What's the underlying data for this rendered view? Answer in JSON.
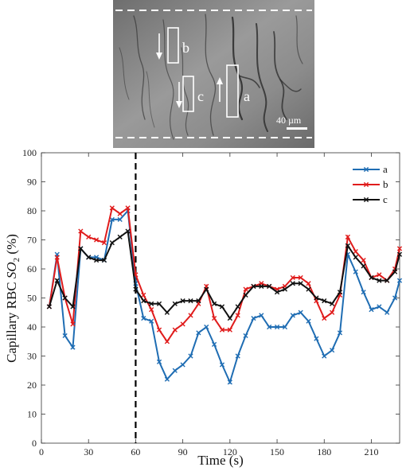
{
  "inset": {
    "labels": [
      "a",
      "b",
      "c"
    ],
    "scale_bar_label": "40 µm"
  },
  "chart_data": {
    "type": "line",
    "title": "",
    "xlabel": "Time (s)",
    "ylabel": "Capillary RBC SO2 (%)",
    "ylabel_parts": {
      "prefix": "Capillary RBC ",
      "so": "SO",
      "sub": "2",
      "suffix": " (%)"
    },
    "xlim": [
      0,
      228
    ],
    "ylim": [
      0,
      100
    ],
    "xticks": [
      0,
      30,
      60,
      90,
      120,
      150,
      180,
      210
    ],
    "yticks": [
      0,
      10,
      20,
      30,
      40,
      50,
      60,
      70,
      80,
      90,
      100
    ],
    "grid": false,
    "legend_position": "top-right",
    "event_line_x": 60,
    "x": [
      5,
      10,
      15,
      20,
      25,
      30,
      35,
      40,
      45,
      50,
      55,
      60,
      65,
      70,
      75,
      80,
      85,
      90,
      95,
      100,
      105,
      110,
      115,
      120,
      125,
      130,
      135,
      140,
      145,
      150,
      155,
      160,
      165,
      170,
      175,
      180,
      185,
      190,
      195,
      200,
      205,
      210,
      215,
      220,
      225,
      228
    ],
    "series": [
      {
        "name": "a",
        "color": "#1f6db3",
        "values": [
          47,
          65,
          37,
          33,
          67,
          64,
          64,
          63,
          77,
          77,
          80,
          55,
          43,
          42,
          28,
          22,
          25,
          27,
          30,
          38,
          40,
          34,
          27,
          21,
          30,
          37,
          43,
          44,
          40,
          40,
          40,
          44,
          45,
          42,
          36,
          30,
          32,
          38,
          65,
          59,
          52,
          46,
          47,
          45,
          50,
          56
        ]
      },
      {
        "name": "b",
        "color": "#e01c1c",
        "values": [
          47,
          64,
          50,
          41,
          73,
          71,
          70,
          69,
          81,
          79,
          81,
          58,
          51,
          46,
          39,
          35,
          39,
          41,
          44,
          48,
          54,
          43,
          39,
          39,
          44,
          53,
          54,
          55,
          54,
          53,
          54,
          57,
          57,
          55,
          49,
          43,
          45,
          51,
          71,
          66,
          63,
          57,
          58,
          56,
          60,
          67
        ]
      },
      {
        "name": "c",
        "color": "#111111",
        "values": [
          47,
          56,
          50,
          47,
          67,
          64,
          63,
          63,
          69,
          71,
          73,
          53,
          49,
          48,
          48,
          45,
          48,
          49,
          49,
          49,
          53,
          48,
          47,
          43,
          47,
          51,
          54,
          54,
          54,
          52,
          53,
          55,
          55,
          53,
          50,
          49,
          48,
          52,
          68,
          64,
          61,
          57,
          56,
          56,
          59,
          65
        ]
      }
    ]
  }
}
